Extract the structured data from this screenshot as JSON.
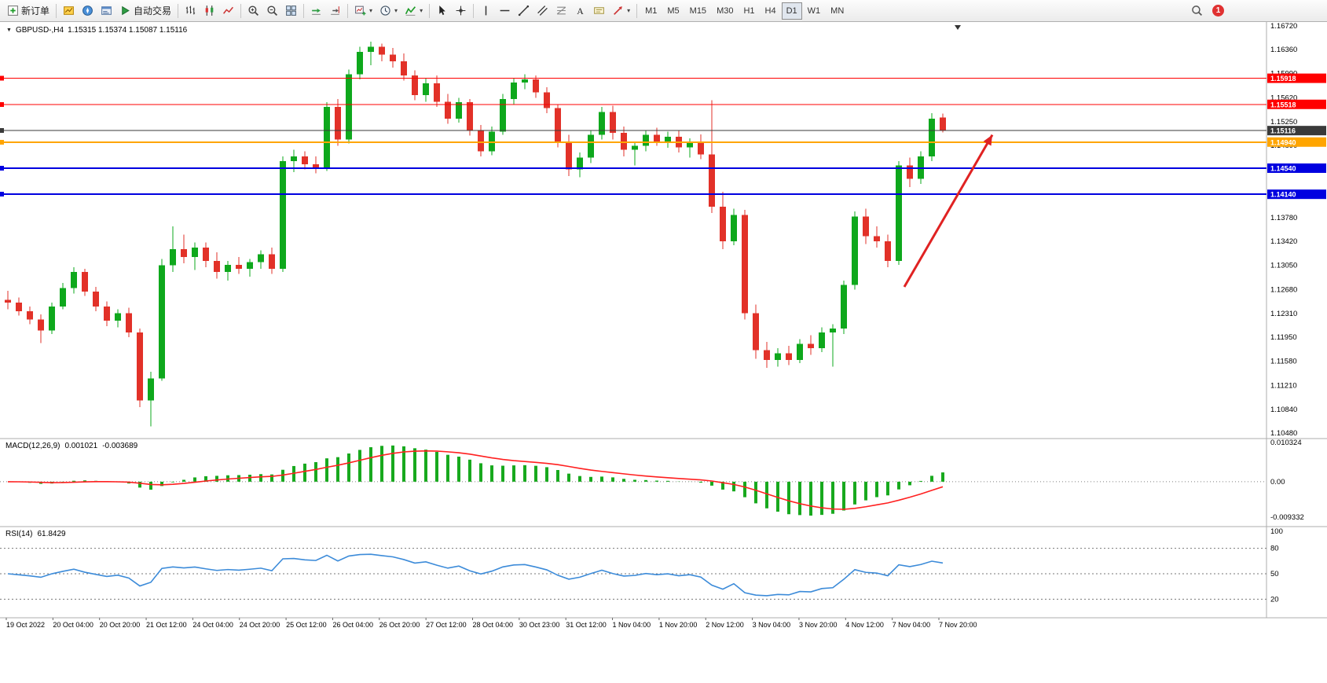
{
  "icons": {
    "chevron_down": "▾",
    "dropdown_triangle": "▼",
    "search": "magnifier",
    "notification": "red-circle-badge"
  },
  "toolbar": {
    "groups": [
      {
        "buttons": [
          {
            "name": "new-order",
            "icon": "new-order",
            "label": "新订单"
          }
        ]
      },
      {
        "buttons": [
          {
            "name": "market-watch",
            "icon": "market-watch"
          },
          {
            "name": "navigator",
            "icon": "navigator"
          },
          {
            "name": "terminal",
            "icon": "terminal"
          },
          {
            "name": "algo-trading",
            "icon": "algo-trading",
            "label": "自动交易"
          }
        ]
      },
      {
        "buttons": [
          {
            "name": "bar-chart",
            "icon": "bar-chart"
          },
          {
            "name": "candlestick-chart",
            "icon": "candlestick-chart"
          },
          {
            "name": "line-chart",
            "icon": "line-chart"
          }
        ]
      },
      {
        "buttons": [
          {
            "name": "zoom-in",
            "icon": "zoom-in"
          },
          {
            "name": "zoom-out",
            "icon": "zoom-out"
          },
          {
            "name": "tile-windows",
            "icon": "tile-windows"
          }
        ]
      },
      {
        "buttons": [
          {
            "name": "auto-scroll",
            "icon": "auto-scroll"
          },
          {
            "name": "chart-shift",
            "icon": "chart-shift"
          }
        ]
      },
      {
        "buttons": [
          {
            "name": "new-chart",
            "icon": "new-chart",
            "caret": true
          },
          {
            "name": "periods",
            "icon": "clock",
            "caret": true
          },
          {
            "name": "indicators-list",
            "icon": "indicators",
            "caret": true
          }
        ]
      },
      {
        "buttons": [
          {
            "name": "cursor",
            "icon": "cursor"
          },
          {
            "name": "crosshair",
            "icon": "crosshair"
          }
        ]
      },
      {
        "buttons": [
          {
            "name": "vertical-line-tool",
            "icon": "vertical-line"
          },
          {
            "name": "horizontal-line-tool",
            "icon": "horizontal-line"
          },
          {
            "name": "trendline-tool",
            "icon": "trendline"
          },
          {
            "name": "equidistant-channel-tool",
            "icon": "equidistant-channel"
          },
          {
            "name": "fibonacci-tool",
            "icon": "fibonacci"
          },
          {
            "name": "text-tool",
            "icon": "text"
          },
          {
            "name": "text-label-tool",
            "icon": "text-label"
          },
          {
            "name": "arrows-tool",
            "icon": "arrow-objects",
            "caret": true
          }
        ]
      },
      {
        "buttons": [
          {
            "name": "tf-m1",
            "label": "M1"
          },
          {
            "name": "tf-m5",
            "label": "M5"
          },
          {
            "name": "tf-m15",
            "label": "M15"
          },
          {
            "name": "tf-m30",
            "label": "M30"
          },
          {
            "name": "tf-h1",
            "label": "H1"
          },
          {
            "name": "tf-h4",
            "label": "H4"
          },
          {
            "name": "tf-d1",
            "label": "D1",
            "active": true
          },
          {
            "name": "tf-w1",
            "label": "W1"
          },
          {
            "name": "tf-mn",
            "label": "MN"
          }
        ]
      }
    ],
    "right": {
      "search_icon": "search",
      "notification_count": "1"
    }
  },
  "chart": {
    "symbol_period": "GBPUSD-,H4",
    "ohlc_text": "1.15315 1.15374 1.15087 1.15116"
  },
  "indicators": {
    "macd": {
      "name": "MACD(12,26,9)",
      "value": "0.001021",
      "signal": "-0.003689"
    },
    "rsi": {
      "name": "RSI(14)",
      "value": "61.8429"
    }
  },
  "chart_data": [
    {
      "type": "candlestick",
      "title": "GBPUSD-,H4",
      "timeframe": "H4",
      "last_ohlc": {
        "open": 1.15315,
        "high": 1.15374,
        "low": 1.15087,
        "close": 1.15116
      },
      "y_range": [
        1.1048,
        1.1672
      ],
      "y_axis_labels": [
        "1.16720",
        "1.16360",
        "1.15990",
        "1.15620",
        "1.15250",
        "1.14890",
        "1.14510",
        "1.14140",
        "1.13780",
        "1.13420",
        "1.13050",
        "1.12680",
        "1.12310",
        "1.11950",
        "1.11580",
        "1.11210",
        "1.10840",
        "1.10480"
      ],
      "x_labels": [
        "19 Oct 2022",
        "20 Oct 04:00",
        "20 Oct 20:00",
        "21 Oct 12:00",
        "24 Oct 04:00",
        "24 Oct 20:00",
        "25 Oct 12:00",
        "26 Oct 04:00",
        "26 Oct 20:00",
        "27 Oct 12:00",
        "28 Oct 04:00",
        "30 Oct 23:00",
        "31 Oct 12:00",
        "1 Nov 04:00",
        "1 Nov 20:00",
        "2 Nov 12:00",
        "3 Nov 04:00",
        "3 Nov 20:00",
        "4 Nov 12:00",
        "7 Nov 04:00",
        "7 Nov 20:00"
      ],
      "candles": [
        [
          1.1252,
          1.1266,
          1.1238,
          1.1248
        ],
        [
          1.1248,
          1.1256,
          1.1228,
          1.1235
        ],
        [
          1.1235,
          1.1242,
          1.1215,
          1.1222
        ],
        [
          1.1222,
          1.123,
          1.1186,
          1.1205
        ],
        [
          1.1205,
          1.1248,
          1.12,
          1.1242
        ],
        [
          1.1242,
          1.1278,
          1.1238,
          1.127
        ],
        [
          1.127,
          1.1302,
          1.1262,
          1.1295
        ],
        [
          1.1295,
          1.13,
          1.1258,
          1.1265
        ],
        [
          1.1265,
          1.1272,
          1.1235,
          1.1242
        ],
        [
          1.1242,
          1.125,
          1.1212,
          1.122
        ],
        [
          1.122,
          1.1238,
          1.121,
          1.1232
        ],
        [
          1.1232,
          1.124,
          1.1195,
          1.1202
        ],
        [
          1.1202,
          1.1208,
          1.1088,
          1.1098
        ],
        [
          1.1098,
          1.1142,
          1.1058,
          1.1132
        ],
        [
          1.1132,
          1.1315,
          1.1128,
          1.1305
        ],
        [
          1.1305,
          1.1365,
          1.1295,
          1.133
        ],
        [
          1.133,
          1.1352,
          1.1308,
          1.1318
        ],
        [
          1.1318,
          1.134,
          1.1298,
          1.1332
        ],
        [
          1.1332,
          1.134,
          1.1302,
          1.1312
        ],
        [
          1.1312,
          1.1325,
          1.1285,
          1.1295
        ],
        [
          1.1295,
          1.1312,
          1.1282,
          1.1306
        ],
        [
          1.1306,
          1.1318,
          1.1292,
          1.13
        ],
        [
          1.13,
          1.1315,
          1.1288,
          1.131
        ],
        [
          1.131,
          1.1328,
          1.13,
          1.1322
        ],
        [
          1.1322,
          1.1332,
          1.1292,
          1.13
        ],
        [
          1.13,
          1.1472,
          1.1295,
          1.1465
        ],
        [
          1.1465,
          1.1482,
          1.1448,
          1.1472
        ],
        [
          1.1472,
          1.148,
          1.1452,
          1.146
        ],
        [
          1.146,
          1.1472,
          1.1446,
          1.1455
        ],
        [
          1.1455,
          1.1555,
          1.145,
          1.1548
        ],
        [
          1.1548,
          1.156,
          1.1488,
          1.1498
        ],
        [
          1.1498,
          1.1605,
          1.1492,
          1.1598
        ],
        [
          1.1598,
          1.164,
          1.159,
          1.1632
        ],
        [
          1.1632,
          1.1648,
          1.1612,
          1.164
        ],
        [
          1.164,
          1.1645,
          1.1618,
          1.1628
        ],
        [
          1.1628,
          1.1638,
          1.1608,
          1.1618
        ],
        [
          1.1618,
          1.163,
          1.1588,
          1.1596
        ],
        [
          1.1596,
          1.1604,
          1.1558,
          1.1566
        ],
        [
          1.1566,
          1.1592,
          1.1556,
          1.1584
        ],
        [
          1.1584,
          1.1596,
          1.1548,
          1.1556
        ],
        [
          1.1556,
          1.1568,
          1.1522,
          1.153
        ],
        [
          1.153,
          1.1562,
          1.1524,
          1.1555
        ],
        [
          1.1555,
          1.156,
          1.1504,
          1.1512
        ],
        [
          1.1512,
          1.152,
          1.1472,
          1.148
        ],
        [
          1.148,
          1.1518,
          1.1474,
          1.151
        ],
        [
          1.151,
          1.1568,
          1.1505,
          1.156
        ],
        [
          1.156,
          1.1592,
          1.1552,
          1.1585
        ],
        [
          1.1585,
          1.1598,
          1.1575,
          1.159
        ],
        [
          1.159,
          1.1596,
          1.1562,
          1.157
        ],
        [
          1.157,
          1.1578,
          1.1538,
          1.1546
        ],
        [
          1.1546,
          1.1552,
          1.1486,
          1.1495
        ],
        [
          1.1495,
          1.1505,
          1.1442,
          1.1452
        ],
        [
          1.1452,
          1.1478,
          1.144,
          1.147
        ],
        [
          1.147,
          1.1512,
          1.1462,
          1.1505
        ],
        [
          1.1505,
          1.1548,
          1.1498,
          1.154
        ],
        [
          1.154,
          1.155,
          1.1498,
          1.1508
        ],
        [
          1.1508,
          1.1518,
          1.1472,
          1.1482
        ],
        [
          1.1482,
          1.1495,
          1.1458,
          1.1488
        ],
        [
          1.1488,
          1.1512,
          1.148,
          1.1505
        ],
        [
          1.1505,
          1.1516,
          1.1488,
          1.1495
        ],
        [
          1.1495,
          1.151,
          1.1485,
          1.1502
        ],
        [
          1.1502,
          1.1512,
          1.1478,
          1.1486
        ],
        [
          1.1486,
          1.15,
          1.147,
          1.1494
        ],
        [
          1.1494,
          1.1506,
          1.1468,
          1.1475
        ],
        [
          1.1475,
          1.1558,
          1.1385,
          1.1395
        ],
        [
          1.1395,
          1.1418,
          1.133,
          1.1342
        ],
        [
          1.1342,
          1.1392,
          1.1336,
          1.1382
        ],
        [
          1.1382,
          1.139,
          1.1222,
          1.1232
        ],
        [
          1.1232,
          1.1245,
          1.1162,
          1.1175
        ],
        [
          1.1175,
          1.1188,
          1.1148,
          1.116
        ],
        [
          1.116,
          1.1178,
          1.115,
          1.117
        ],
        [
          1.117,
          1.1182,
          1.1152,
          1.116
        ],
        [
          1.116,
          1.1192,
          1.1155,
          1.1185
        ],
        [
          1.1185,
          1.1198,
          1.1168,
          1.1178
        ],
        [
          1.1178,
          1.121,
          1.1172,
          1.1202
        ],
        [
          1.1202,
          1.1215,
          1.115,
          1.1208
        ],
        [
          1.1208,
          1.1282,
          1.12,
          1.1275
        ],
        [
          1.1275,
          1.1388,
          1.1268,
          1.138
        ],
        [
          1.138,
          1.1392,
          1.1338,
          1.135
        ],
        [
          1.135,
          1.1365,
          1.1332,
          1.1342
        ],
        [
          1.1342,
          1.1352,
          1.1302,
          1.1312
        ],
        [
          1.1312,
          1.1465,
          1.1306,
          1.1458
        ],
        [
          1.1458,
          1.147,
          1.1425,
          1.1438
        ],
        [
          1.1438,
          1.148,
          1.143,
          1.1472
        ],
        [
          1.1472,
          1.1538,
          1.1465,
          1.153
        ],
        [
          1.15315,
          1.15374,
          1.15087,
          1.15116
        ]
      ],
      "price_lines": [
        {
          "price": 1.15918,
          "label": "1.15918",
          "color": "#FF0000",
          "width": 1
        },
        {
          "price": 1.15518,
          "label": "1.15518",
          "color": "#FF0000",
          "width": 1
        },
        {
          "price": 1.15116,
          "label": "1.15116",
          "color": "#3a3a3a",
          "width": 1
        },
        {
          "price": 1.1494,
          "label": "1.14940",
          "color": "#FFA500",
          "width": 2
        },
        {
          "price": 1.1454,
          "label": "1.14540",
          "color": "#0000E0",
          "width": 2
        },
        {
          "price": 1.1414,
          "label": "1.14140",
          "color": "#0000E0",
          "width": 2
        }
      ],
      "trend_arrow": {
        "from_bar": 81.5,
        "from_price": 1.1272,
        "to_bar": 89.5,
        "to_price": 1.1505,
        "color": "#E02222",
        "width": 3
      },
      "colors": {
        "up": "#0EA81C",
        "down": "#E23128"
      }
    },
    {
      "type": "histogram+line",
      "title": "MACD(12,26,9)",
      "params": [
        12,
        26,
        9
      ],
      "current_value": 0.001021,
      "current_signal": -0.003689,
      "y_range": [
        -0.009332,
        0.010324
      ],
      "y_axis_labels": [
        "0.010324",
        "0.00",
        "-0.009332"
      ],
      "source": "computed_from_candles",
      "colors": {
        "histogram": "#18A91E",
        "signal": "#FF2020"
      }
    },
    {
      "type": "line",
      "title": "RSI(14)",
      "period": 14,
      "current_value": 61.8429,
      "levels": [
        80,
        50,
        20
      ],
      "y_range": [
        0,
        100
      ],
      "y_axis_labels": [
        "100",
        "80",
        "50",
        "20"
      ],
      "source": "computed_from_candles",
      "color": "#3C8BD9"
    }
  ]
}
